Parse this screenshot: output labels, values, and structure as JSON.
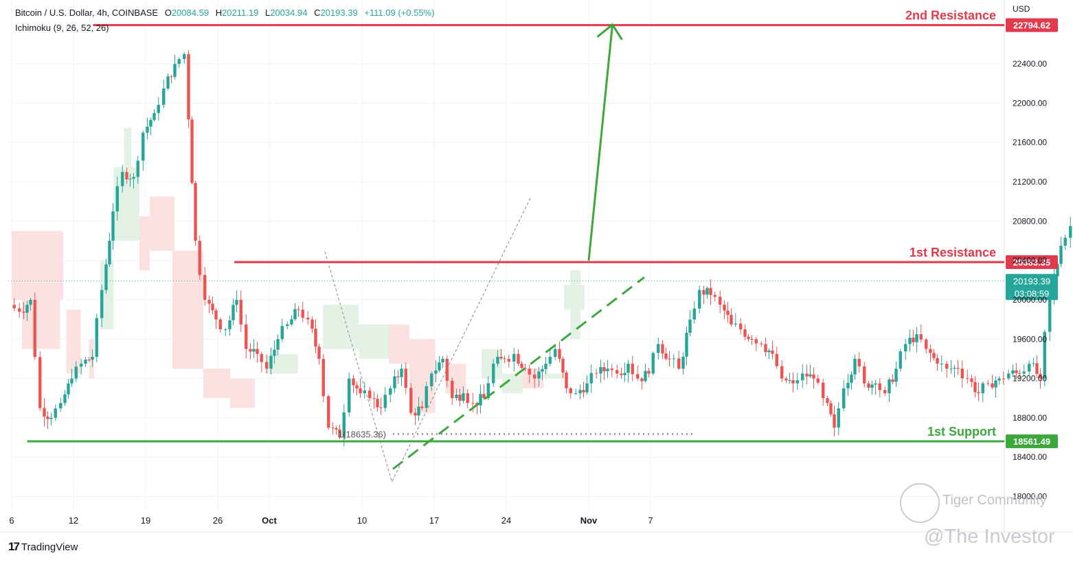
{
  "header": {
    "symbol": "Bitcoin / U.S. Dollar, 4h, COINBASE",
    "open_label": "O",
    "open": "20084.59",
    "high_label": "H",
    "high": "20211.19",
    "low_label": "L",
    "low": "20034.94",
    "close_label": "C",
    "close": "20193.39",
    "change": "+111.09 (+0.55%)",
    "indicator": "Ichimoku (9, 26, 52, 26)"
  },
  "axis": {
    "currency": "USD"
  },
  "branding": {
    "logo": "TradingView",
    "watermark_1": "Tiger Community",
    "watermark_2": "@The Investor"
  },
  "chart_data": {
    "type": "candlestick",
    "instrument": "BTC/USD",
    "timeframe": "4h",
    "ylim": [
      17850,
      23050
    ],
    "y_ticks": [
      "18000.00",
      "18400.00",
      "18800.00",
      "19200.00",
      "19600.00",
      "20000.00",
      "20400.00",
      "20800.00",
      "21200.00",
      "21600.00",
      "22000.00",
      "22400.00"
    ],
    "x_ticks": [
      "6",
      "12",
      "19",
      "26",
      "Oct",
      "10",
      "17",
      "24",
      "Nov",
      "7"
    ],
    "x_tick_index": [
      0,
      6,
      13,
      20,
      25,
      34,
      41,
      48,
      56,
      62
    ],
    "grid": true,
    "levels": [
      {
        "name": "2nd Resistance",
        "value": 22794.62,
        "label": "22794.62",
        "color": "#e03a4d",
        "start": 7.9
      },
      {
        "name": "1st Resistance",
        "value": 20383.35,
        "label": "20383.35",
        "color": "#e03a4d",
        "start": 21.6
      },
      {
        "name": "1st Support",
        "value": 18561.49,
        "label": "18561.49",
        "color": "#3aa83a",
        "start": 1.5
      }
    ],
    "last_price": {
      "value": 20193.39,
      "label": "20193.39",
      "countdown": "03:08:59",
      "color": "#26a69a"
    },
    "annotation": {
      "text": "1(18635.36)",
      "value": 18635.36,
      "index": 36.6
    },
    "closes": [
      19950,
      19880,
      20000,
      18900,
      18800,
      18950,
      19200,
      19350,
      19420,
      20100,
      20900,
      21300,
      21250,
      21700,
      21900,
      22150,
      22400,
      22500,
      20600,
      20000,
      19800,
      19700,
      20000,
      19500,
      19450,
      19300,
      19600,
      19750,
      19900,
      19800,
      19400,
      18700,
      18600,
      19200,
      19050,
      19000,
      18900,
      19100,
      19300,
      18850,
      18900,
      19250,
      19400,
      19000,
      19050,
      18950,
      19000,
      19350,
      19400,
      19450,
      19300,
      19200,
      19350,
      19500,
      19100,
      19050,
      19150,
      19250,
      19300,
      19250,
      19350,
      19200,
      19250,
      19550,
      19400,
      19300,
      19800,
      20100,
      20050,
      19950,
      19750,
      19700,
      19600,
      19550,
      19450,
      19200,
      19150,
      19250,
      19200,
      19000,
      18700,
      19100,
      19400,
      19150,
      19150,
      19050,
      19300,
      19550,
      19650,
      19500,
      19350,
      19300,
      19300,
      19200,
      19050,
      19150,
      19200,
      19250,
      19250,
      19350,
      19200,
      20050,
      20550,
      20750,
      20600,
      20350,
      20193
    ],
    "cloud": [
      {
        "i0": 0.0,
        "i1": 5.0,
        "top": 20700,
        "bot": 20000,
        "color": "#fbe1df"
      },
      {
        "i0": 1.0,
        "i1": 4.7,
        "top": 20050,
        "bot": 19500,
        "color": "#fbe1df"
      },
      {
        "i0": 5.3,
        "i1": 6.7,
        "top": 19900,
        "bot": 19250,
        "color": "#fbe1df"
      },
      {
        "i0": 7.5,
        "i1": 8.0,
        "top": 19600,
        "bot": 19200,
        "color": "#fbe1df"
      },
      {
        "i0": 8.6,
        "i1": 9.9,
        "top": 20400,
        "bot": 19700,
        "color": "#e4f2e6"
      },
      {
        "i0": 9.9,
        "i1": 12.4,
        "top": 21350,
        "bot": 20600,
        "color": "#e4f2e6"
      },
      {
        "i0": 10.9,
        "i1": 11.6,
        "top": 21750,
        "bot": 21200,
        "color": "#e4f2e6"
      },
      {
        "i0": 12.4,
        "i1": 13.4,
        "top": 20850,
        "bot": 20300,
        "color": "#fbe1df"
      },
      {
        "i0": 13.4,
        "i1": 15.8,
        "top": 21050,
        "bot": 20500,
        "color": "#fbe1df"
      },
      {
        "i0": 15.6,
        "i1": 18.6,
        "top": 20500,
        "bot": 19300,
        "color": "#fbe1df"
      },
      {
        "i0": 18.6,
        "i1": 21.2,
        "top": 19300,
        "bot": 19000,
        "color": "#fbe1df"
      },
      {
        "i0": 21.2,
        "i1": 23.6,
        "top": 19200,
        "bot": 18900,
        "color": "#fbe1df"
      },
      {
        "i0": 24.6,
        "i1": 27.8,
        "top": 19450,
        "bot": 19250,
        "color": "#e4f2e6"
      },
      {
        "i0": 30.2,
        "i1": 33.7,
        "top": 19950,
        "bot": 19500,
        "color": "#e4f2e6"
      },
      {
        "i0": 33.7,
        "i1": 36.6,
        "top": 19750,
        "bot": 19400,
        "color": "#e4f2e6"
      },
      {
        "i0": 36.6,
        "i1": 38.6,
        "top": 19750,
        "bot": 19350,
        "color": "#fbe1df"
      },
      {
        "i0": 38.6,
        "i1": 41.1,
        "top": 19600,
        "bot": 18850,
        "color": "#fbe1df"
      },
      {
        "i0": 42.1,
        "i1": 44.1,
        "top": 19350,
        "bot": 19050,
        "color": "#fbe1df"
      },
      {
        "i0": 45.6,
        "i1": 47.6,
        "top": 19500,
        "bot": 19200,
        "color": "#e4f2e6"
      },
      {
        "i0": 47.6,
        "i1": 49.6,
        "top": 19250,
        "bot": 19050,
        "color": "#e4f2e6"
      },
      {
        "i0": 49.6,
        "i1": 51.6,
        "top": 19300,
        "bot": 19100,
        "color": "#fbe1df"
      },
      {
        "i0": 51.6,
        "i1": 53.6,
        "top": 19250,
        "bot": 19200,
        "color": "#e4f2e6"
      },
      {
        "i0": 53.6,
        "i1": 55.6,
        "top": 20150,
        "bot": 19900,
        "color": "#e4f2e6"
      },
      {
        "i0": 54.2,
        "i1": 55.2,
        "top": 20300,
        "bot": 19600,
        "color": "#e4f2e6"
      }
    ],
    "drawings": {
      "projection_arrow": {
        "from": [
          56.0,
          20400
        ],
        "to": [
          58.3,
          22800
        ],
        "color": "#3aa83a"
      },
      "trendline": {
        "from": [
          37.0,
          18280
        ],
        "to": [
          61.4,
          20230
        ],
        "color": "#3aa83a",
        "style": "dashed"
      },
      "support_dotted": {
        "from": [
          37.0,
          18635
        ],
        "to": [
          66.2,
          18635
        ],
        "color": "#888888"
      },
      "zigzag": [
        [
          30.4,
          20490
        ],
        [
          36.9,
          18150
        ],
        [
          50.4,
          21050
        ]
      ],
      "ichimoku_lagging_hint": true
    },
    "xlabel": "",
    "ylabel": ""
  }
}
